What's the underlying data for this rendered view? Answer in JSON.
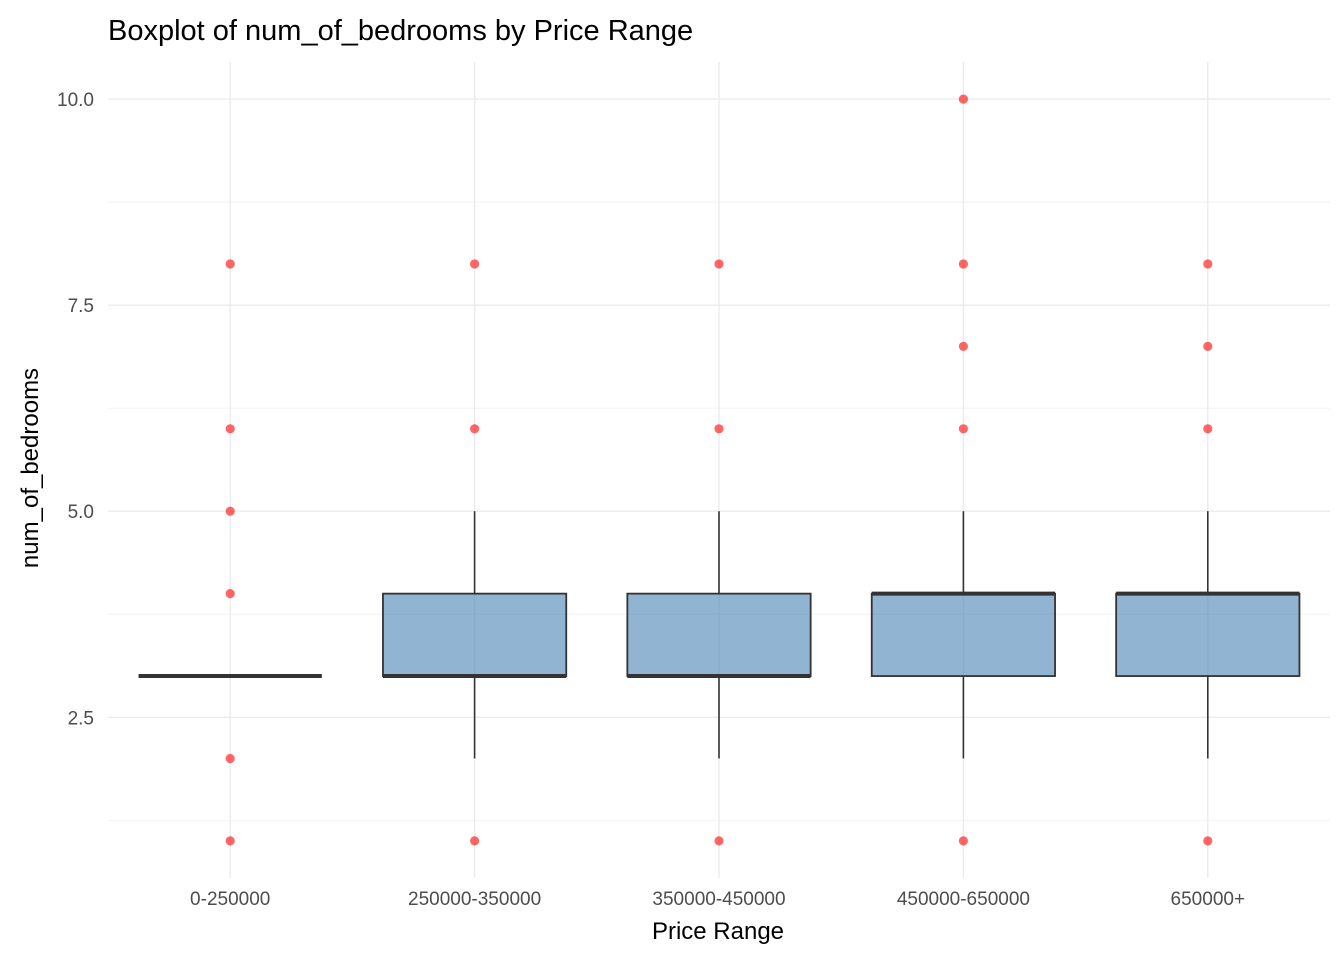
{
  "chart_data": {
    "type": "box",
    "title": "Boxplot of num_of_bedrooms by Price Range",
    "xlabel": "Price Range",
    "ylabel": "num_of_bedrooms",
    "ylim": [
      0.55,
      10.45
    ],
    "yticks": [
      2.5,
      5.0,
      7.5,
      10.0
    ],
    "ytick_labels": [
      "2.5",
      "5.0",
      "7.5",
      "10.0"
    ],
    "grid": true,
    "categories": [
      "0-250000",
      "250000-350000",
      "350000-450000",
      "450000-650000",
      "650000+"
    ],
    "boxes": [
      {
        "category": "0-250000",
        "whisker_low": 3,
        "q1": 3,
        "median": 3,
        "q3": 3,
        "whisker_high": 3,
        "outliers": [
          8,
          6,
          5,
          4,
          2,
          1
        ]
      },
      {
        "category": "250000-350000",
        "whisker_low": 2,
        "q1": 3,
        "median": 3,
        "q3": 4,
        "whisker_high": 5,
        "outliers": [
          8,
          6,
          1
        ]
      },
      {
        "category": "350000-450000",
        "whisker_low": 2,
        "q1": 3,
        "median": 3,
        "q3": 4,
        "whisker_high": 5,
        "outliers": [
          8,
          6,
          1
        ]
      },
      {
        "category": "450000-650000",
        "whisker_low": 2,
        "q1": 3,
        "median": 4,
        "q3": 4,
        "whisker_high": 5,
        "outliers": [
          10,
          8,
          7,
          6,
          1
        ]
      },
      {
        "category": "650000+",
        "whisker_low": 2,
        "q1": 3,
        "median": 4,
        "q3": 4,
        "whisker_high": 5,
        "outliers": [
          8,
          7,
          6,
          1
        ]
      }
    ],
    "colors": {
      "box_fill": "#4682b4",
      "box_stroke": "#333333",
      "outlier": "#ff0000"
    }
  }
}
